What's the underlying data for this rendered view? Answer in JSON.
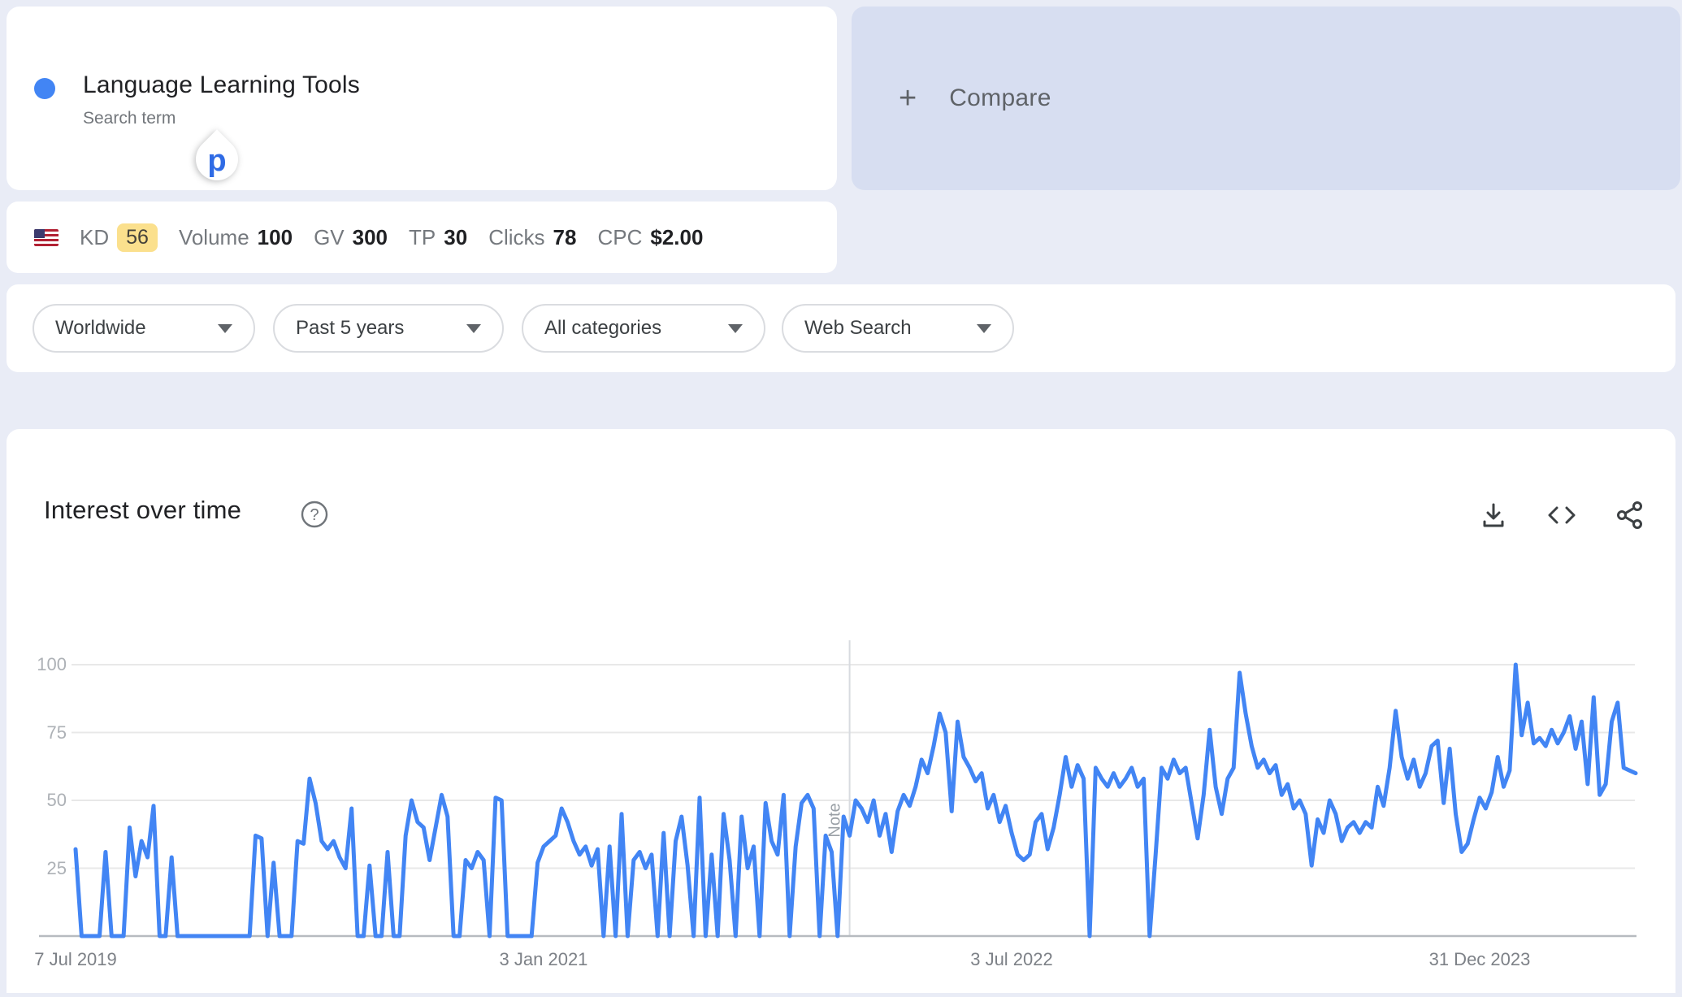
{
  "term_card": {
    "title": "Language Learning Tools",
    "subtitle": "Search term",
    "dot_color": "#4285f4",
    "cursor_glyph": "p"
  },
  "compare_card": {
    "plus": "+",
    "label": "Compare"
  },
  "stats_bar": {
    "flag": "us-flag",
    "metrics": [
      {
        "label": "KD",
        "value": "56"
      },
      {
        "label": "Volume",
        "value": "100"
      },
      {
        "label": "GV",
        "value": "300"
      },
      {
        "label": "TP",
        "value": "30"
      },
      {
        "label": "Clicks",
        "value": "78"
      },
      {
        "label": "CPC",
        "value": "$2.00"
      }
    ]
  },
  "filters": [
    "Worldwide",
    "Past 5 years",
    "All categories",
    "Web Search"
  ],
  "chart_section": {
    "title": "Interest over time",
    "help_icon": "help-circle",
    "icons": [
      "download-icon",
      "embed-code-icon",
      "share-icon"
    ]
  },
  "chart_data": {
    "type": "line",
    "title": "Interest over time",
    "series_name": "Language Learning Tools",
    "x_start": "7 Jul 2019",
    "x_interval": "weekly",
    "xlabel": "",
    "ylabel": "",
    "ylim": [
      0,
      100
    ],
    "grid": true,
    "line_color": "#4285f4",
    "y_ticks": [
      "100",
      "75",
      "50",
      "25"
    ],
    "x_ticks": [
      {
        "label": "7 Jul 2019",
        "index": 0
      },
      {
        "label": "3 Jan 2021",
        "index": 78
      },
      {
        "label": "3 Jul 2022",
        "index": 156
      },
      {
        "label": "31 Dec 2023",
        "index": 234
      }
    ],
    "note_marker": {
      "label": "Note",
      "index": 129
    },
    "values": [
      32,
      0,
      0,
      0,
      0,
      31,
      0,
      0,
      0,
      40,
      22,
      35,
      29,
      48,
      0,
      0,
      29,
      0,
      0,
      0,
      0,
      0,
      0,
      0,
      0,
      0,
      0,
      0,
      0,
      0,
      37,
      36,
      0,
      27,
      0,
      0,
      0,
      35,
      34,
      58,
      49,
      35,
      32,
      35,
      29,
      25,
      47,
      0,
      0,
      26,
      0,
      0,
      31,
      0,
      0,
      37,
      50,
      42,
      40,
      28,
      40,
      52,
      44,
      0,
      0,
      28,
      25,
      31,
      28,
      0,
      51,
      50,
      0,
      0,
      0,
      0,
      0,
      27,
      33,
      35,
      37,
      47,
      42,
      35,
      30,
      33,
      26,
      32,
      0,
      33,
      0,
      45,
      0,
      28,
      31,
      25,
      30,
      0,
      38,
      0,
      35,
      44,
      26,
      0,
      51,
      0,
      30,
      0,
      45,
      28,
      0,
      44,
      25,
      33,
      0,
      49,
      35,
      30,
      52,
      0,
      33,
      49,
      52,
      47,
      0,
      37,
      31,
      0,
      44,
      37,
      50,
      47,
      42,
      50,
      37,
      45,
      31,
      46,
      52,
      48,
      55,
      65,
      60,
      70,
      82,
      75,
      46,
      79,
      66,
      62,
      57,
      60,
      47,
      52,
      42,
      48,
      38,
      30,
      28,
      30,
      42,
      45,
      32,
      40,
      52,
      66,
      55,
      63,
      58,
      0,
      62,
      58,
      55,
      60,
      55,
      58,
      62,
      55,
      58,
      0,
      30,
      62,
      58,
      65,
      60,
      62,
      49,
      36,
      52,
      76,
      55,
      45,
      58,
      62,
      97,
      82,
      70,
      62,
      65,
      60,
      63,
      52,
      56,
      47,
      50,
      45,
      26,
      43,
      38,
      50,
      45,
      35,
      40,
      42,
      38,
      42,
      40,
      55,
      48,
      62,
      83,
      66,
      58,
      65,
      55,
      60,
      70,
      72,
      49,
      69,
      45,
      31,
      34,
      43,
      51,
      47,
      53,
      66,
      55,
      61,
      100,
      74,
      86,
      71,
      73,
      70,
      76,
      71,
      75,
      81,
      69,
      79,
      56,
      88,
      52,
      56,
      79,
      86,
      62,
      61,
      60
    ]
  }
}
